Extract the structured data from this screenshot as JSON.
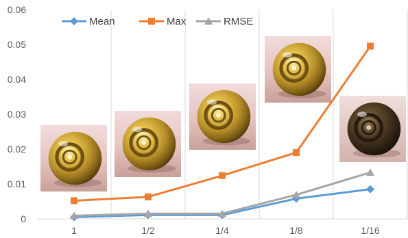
{
  "chart_data": {
    "type": "line",
    "categories": [
      "1",
      "1/2",
      "1/4",
      "1/8",
      "1/16"
    ],
    "series": [
      {
        "name": "Mean",
        "color": "#5B9BD5",
        "marker": "diamond",
        "values": [
          0.0005,
          0.0011,
          0.0011,
          0.0058,
          0.0085
        ]
      },
      {
        "name": "Max",
        "color": "#ED7D31",
        "marker": "square",
        "values": [
          0.0052,
          0.0063,
          0.0124,
          0.019,
          0.0495
        ]
      },
      {
        "name": "RMSE",
        "color": "#A5A5A5",
        "marker": "triangle",
        "values": [
          0.0009,
          0.0015,
          0.0015,
          0.0069,
          0.0133
        ]
      }
    ],
    "y_ticks": [
      "0",
      "0.01",
      "0.02",
      "0.03",
      "0.04",
      "0.05",
      "0.06"
    ],
    "ylim": [
      0,
      0.06
    ],
    "grid": "vertical",
    "legend_position": "top-left",
    "thumbnails": [
      {
        "category": "1",
        "icon": "gold-sphere-thumbnail",
        "tone": "gold"
      },
      {
        "category": "1/2",
        "icon": "gold-sphere-thumbnail",
        "tone": "gold"
      },
      {
        "category": "1/4",
        "icon": "gold-sphere-thumbnail",
        "tone": "gold"
      },
      {
        "category": "1/8",
        "icon": "gold-sphere-thumbnail",
        "tone": "gold"
      },
      {
        "category": "1/16",
        "icon": "dark-sphere-thumbnail",
        "tone": "dark"
      }
    ]
  }
}
